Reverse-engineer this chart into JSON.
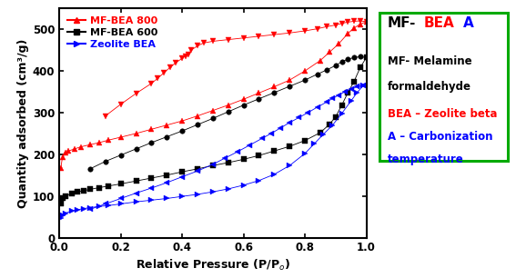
{
  "xlabel": "Relative Pressure (P/P₀)",
  "ylabel": "Quantity adsorbed (cm³/g)",
  "ylim": [
    0,
    550
  ],
  "xlim": [
    0.0,
    1.0
  ],
  "yticks": [
    0,
    100,
    200,
    300,
    400,
    500
  ],
  "xticks": [
    0.0,
    0.2,
    0.4,
    0.6,
    0.8,
    1.0
  ],
  "bg_color": "#ffffff",
  "series": {
    "red_adsorption": {
      "x": [
        0.005,
        0.01,
        0.02,
        0.03,
        0.05,
        0.07,
        0.1,
        0.13,
        0.16,
        0.2,
        0.25,
        0.3,
        0.35,
        0.4,
        0.45,
        0.5,
        0.55,
        0.6,
        0.65,
        0.7,
        0.75,
        0.8,
        0.85,
        0.88,
        0.91,
        0.94,
        0.96,
        0.98,
        1.0
      ],
      "y": [
        168,
        193,
        203,
        208,
        213,
        218,
        223,
        228,
        234,
        241,
        250,
        260,
        270,
        280,
        292,
        305,
        318,
        332,
        347,
        362,
        378,
        400,
        425,
        445,
        465,
        490,
        503,
        512,
        518
      ],
      "color": "#ff0000",
      "marker": "^",
      "markersize": 4
    },
    "red_desorption": {
      "x": [
        1.0,
        0.98,
        0.96,
        0.94,
        0.92,
        0.9,
        0.87,
        0.84,
        0.8,
        0.75,
        0.7,
        0.65,
        0.6,
        0.55,
        0.5,
        0.47,
        0.45,
        0.43,
        0.42,
        0.41,
        0.4,
        0.38,
        0.36,
        0.34,
        0.32,
        0.3,
        0.25,
        0.2,
        0.15
      ],
      "y": [
        518,
        520,
        519,
        517,
        514,
        510,
        506,
        501,
        496,
        491,
        487,
        483,
        479,
        475,
        471,
        467,
        460,
        450,
        440,
        435,
        430,
        420,
        408,
        395,
        382,
        370,
        346,
        320,
        292
      ],
      "color": "#ff0000",
      "marker": "v",
      "markersize": 4
    },
    "black_adsorption": {
      "x": [
        0.005,
        0.01,
        0.02,
        0.04,
        0.06,
        0.08,
        0.1,
        0.13,
        0.16,
        0.2,
        0.25,
        0.3,
        0.35,
        0.4,
        0.45,
        0.5,
        0.55,
        0.6,
        0.65,
        0.7,
        0.75,
        0.8,
        0.85,
        0.88,
        0.9,
        0.92,
        0.94,
        0.96,
        0.98,
        1.0
      ],
      "y": [
        82,
        94,
        100,
        106,
        110,
        113,
        116,
        120,
        124,
        129,
        136,
        143,
        150,
        158,
        165,
        173,
        180,
        188,
        197,
        208,
        219,
        233,
        252,
        272,
        290,
        318,
        348,
        375,
        408,
        432
      ],
      "color": "#000000",
      "marker": "s",
      "markersize": 4
    },
    "black_desorption": {
      "x": [
        1.0,
        0.98,
        0.96,
        0.94,
        0.92,
        0.9,
        0.87,
        0.84,
        0.8,
        0.75,
        0.7,
        0.65,
        0.6,
        0.55,
        0.5,
        0.45,
        0.4,
        0.35,
        0.3,
        0.25,
        0.2,
        0.15,
        0.1
      ],
      "y": [
        432,
        434,
        432,
        428,
        422,
        413,
        402,
        392,
        378,
        363,
        348,
        333,
        318,
        302,
        286,
        271,
        256,
        242,
        228,
        213,
        198,
        183,
        165
      ],
      "color": "#000000",
      "marker": "o",
      "markersize": 4
    },
    "blue_adsorption": {
      "x": [
        0.005,
        0.01,
        0.02,
        0.04,
        0.06,
        0.08,
        0.1,
        0.13,
        0.16,
        0.2,
        0.25,
        0.3,
        0.35,
        0.4,
        0.45,
        0.5,
        0.55,
        0.6,
        0.65,
        0.7,
        0.75,
        0.8,
        0.83,
        0.86,
        0.89,
        0.92,
        0.95,
        0.97,
        0.99
      ],
      "y": [
        47,
        54,
        59,
        64,
        67,
        70,
        72,
        75,
        77,
        81,
        86,
        90,
        94,
        99,
        104,
        110,
        117,
        126,
        137,
        152,
        173,
        202,
        225,
        248,
        270,
        298,
        328,
        348,
        365
      ],
      "color": "#0000ff",
      "marker": ">",
      "markersize": 4
    },
    "blue_desorption": {
      "x": [
        0.99,
        0.97,
        0.95,
        0.93,
        0.91,
        0.89,
        0.87,
        0.84,
        0.81,
        0.78,
        0.75,
        0.72,
        0.69,
        0.66,
        0.62,
        0.58,
        0.54,
        0.5,
        0.45,
        0.4,
        0.35,
        0.3,
        0.25,
        0.2,
        0.15,
        0.1
      ],
      "y": [
        365,
        362,
        356,
        350,
        342,
        334,
        325,
        313,
        300,
        288,
        276,
        263,
        250,
        238,
        222,
        206,
        191,
        176,
        160,
        146,
        132,
        119,
        107,
        94,
        81,
        68
      ],
      "color": "#0000ff",
      "marker": "<",
      "markersize": 4
    }
  }
}
